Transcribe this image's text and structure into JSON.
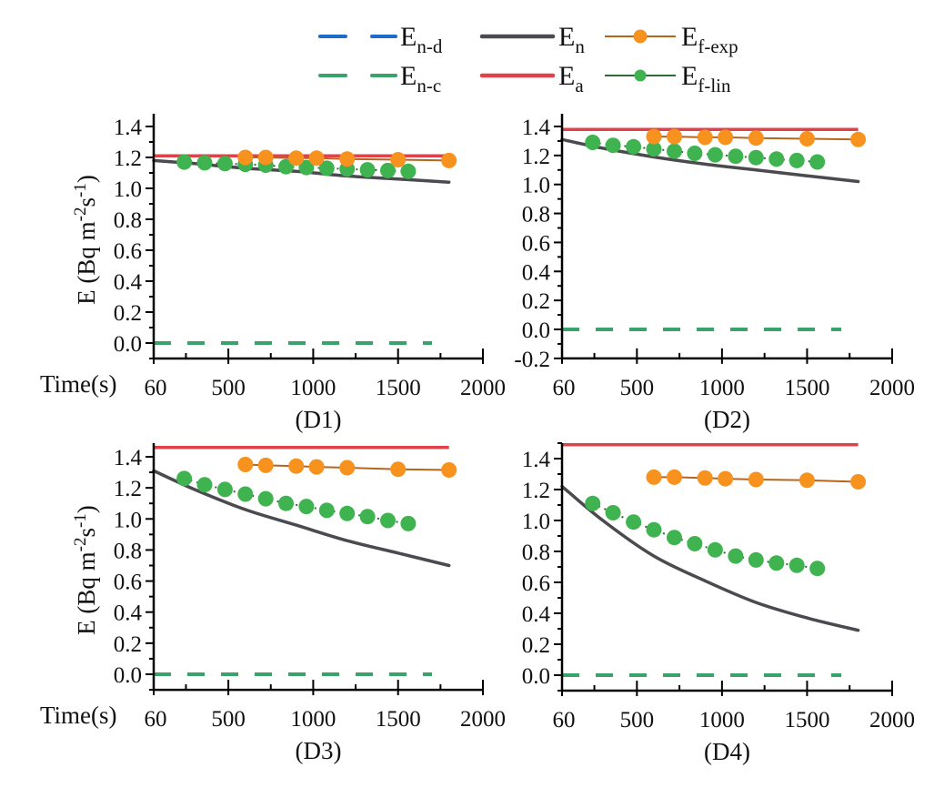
{
  "legend": {
    "items": [
      {
        "key": "En_d",
        "main": "E",
        "sub": "n-d",
        "style": "dashed",
        "color": "#1f6cc8"
      },
      {
        "key": "En",
        "main": "E",
        "sub": "n",
        "style": "solid",
        "color": "#4a4a4f"
      },
      {
        "key": "Ef_exp",
        "main": "E",
        "sub": "f-exp",
        "style": "line-marker",
        "color": "#f7921e",
        "line_color": "#b5651d"
      },
      {
        "key": "En_c",
        "main": "E",
        "sub": "n-c",
        "style": "dashed",
        "color": "#3aa36b"
      },
      {
        "key": "Ea",
        "main": "E",
        "sub": "a",
        "style": "solid",
        "color": "#e0424a"
      },
      {
        "key": "Ef_lin",
        "main": "E",
        "sub": "f-lin",
        "style": "dot-marker",
        "color": "#3fb34f",
        "line_color": "#2e6b37"
      }
    ]
  },
  "labels": {
    "ylabel_main": "E (Bq m",
    "ylabel_sup1": "-2",
    "ylabel_mid": "s",
    "ylabel_sup2": "-1",
    "ylabel_end": ")",
    "xlabel": "Time(s)"
  },
  "chart_data": [
    {
      "type": "line",
      "title": "(D1)",
      "xlabel": "Time(s)",
      "ylabel": "E (Bq m-2s-1)",
      "xlim": [
        60,
        2000
      ],
      "ylim": [
        -0.1,
        1.5
      ],
      "xticks": [
        60,
        500,
        1000,
        1500,
        2000
      ],
      "yticks": [
        0.0,
        0.2,
        0.4,
        0.6,
        0.8,
        1.0,
        1.2,
        1.4
      ],
      "ytick_labels": [
        "0.0",
        "0.2",
        "0.4",
        "0.6",
        "0.8",
        "1.0",
        "1.2",
        "1.4"
      ],
      "series": [
        {
          "name": "En-d",
          "x": [
            60,
            1700
          ],
          "y": [
            0.0,
            0.0
          ]
        },
        {
          "name": "En-c",
          "x": [
            60,
            1700
          ],
          "y": [
            0.0,
            0.0
          ]
        },
        {
          "name": "Ea",
          "x": [
            60,
            1800
          ],
          "y": [
            1.21,
            1.21
          ]
        },
        {
          "name": "En",
          "x": [
            60,
            300,
            600,
            900,
            1200,
            1500,
            1800
          ],
          "y": [
            1.18,
            1.16,
            1.13,
            1.11,
            1.08,
            1.06,
            1.04
          ]
        },
        {
          "name": "Ef-exp",
          "x": [
            600,
            720,
            900,
            1020,
            1200,
            1500,
            1800
          ],
          "y": [
            1.2,
            1.2,
            1.195,
            1.195,
            1.19,
            1.185,
            1.18
          ]
        },
        {
          "name": "Ef-lin",
          "x": [
            240,
            360,
            480,
            600,
            720,
            840,
            960,
            1080,
            1200,
            1320,
            1440,
            1560
          ],
          "y": [
            1.17,
            1.165,
            1.16,
            1.155,
            1.15,
            1.14,
            1.135,
            1.13,
            1.125,
            1.12,
            1.115,
            1.11
          ]
        }
      ]
    },
    {
      "type": "line",
      "title": "(D2)",
      "xlabel": "",
      "ylabel": "",
      "xlim": [
        60,
        2000
      ],
      "ylim": [
        -0.2,
        1.5
      ],
      "xticks": [
        60,
        500,
        1000,
        1500,
        2000
      ],
      "yticks": [
        -0.2,
        0.0,
        0.2,
        0.4,
        0.6,
        0.8,
        1.0,
        1.2,
        1.4
      ],
      "ytick_labels": [
        "-0.2",
        "0.0",
        "0.2",
        "0.4",
        "0.6",
        "0.8",
        "1.0",
        "1.2",
        "1.4"
      ],
      "series": [
        {
          "name": "En-d",
          "x": [
            60,
            1700
          ],
          "y": [
            0.0,
            0.0
          ]
        },
        {
          "name": "En-c",
          "x": [
            60,
            1700
          ],
          "y": [
            0.0,
            0.0
          ]
        },
        {
          "name": "Ea",
          "x": [
            60,
            1800
          ],
          "y": [
            1.38,
            1.38
          ]
        },
        {
          "name": "En",
          "x": [
            60,
            300,
            600,
            900,
            1200,
            1500,
            1800
          ],
          "y": [
            1.31,
            1.25,
            1.19,
            1.14,
            1.1,
            1.06,
            1.02
          ]
        },
        {
          "name": "Ef-exp",
          "x": [
            600,
            720,
            900,
            1020,
            1200,
            1500,
            1800
          ],
          "y": [
            1.33,
            1.33,
            1.325,
            1.325,
            1.32,
            1.315,
            1.31
          ]
        },
        {
          "name": "Ef-lin",
          "x": [
            240,
            360,
            480,
            600,
            720,
            840,
            960,
            1080,
            1200,
            1320,
            1440,
            1560
          ],
          "y": [
            1.29,
            1.27,
            1.26,
            1.245,
            1.23,
            1.215,
            1.205,
            1.195,
            1.185,
            1.175,
            1.165,
            1.155
          ]
        }
      ]
    },
    {
      "type": "line",
      "title": "(D3)",
      "xlabel": "Time(s)",
      "ylabel": "E (Bq m-2s-1)",
      "xlim": [
        60,
        2000
      ],
      "ylim": [
        -0.1,
        1.5
      ],
      "xticks": [
        60,
        500,
        1000,
        1500,
        2000
      ],
      "yticks": [
        0.0,
        0.2,
        0.4,
        0.6,
        0.8,
        1.0,
        1.2,
        1.4
      ],
      "ytick_labels": [
        "0.0",
        "0.2",
        "0.4",
        "0.6",
        "0.8",
        "1.0",
        "1.2",
        "1.4"
      ],
      "series": [
        {
          "name": "En-d",
          "x": [
            60,
            1700
          ],
          "y": [
            0.0,
            0.0
          ]
        },
        {
          "name": "En-c",
          "x": [
            60,
            1700
          ],
          "y": [
            0.0,
            0.0
          ]
        },
        {
          "name": "Ea",
          "x": [
            60,
            1800
          ],
          "y": [
            1.46,
            1.46
          ]
        },
        {
          "name": "En",
          "x": [
            60,
            300,
            600,
            900,
            1200,
            1500,
            1800
          ],
          "y": [
            1.31,
            1.19,
            1.06,
            0.96,
            0.86,
            0.78,
            0.7
          ]
        },
        {
          "name": "Ef-exp",
          "x": [
            600,
            720,
            900,
            1020,
            1200,
            1500,
            1800
          ],
          "y": [
            1.35,
            1.345,
            1.34,
            1.335,
            1.33,
            1.32,
            1.315
          ]
        },
        {
          "name": "Ef-lin",
          "x": [
            240,
            360,
            480,
            600,
            720,
            840,
            960,
            1080,
            1200,
            1320,
            1440,
            1560
          ],
          "y": [
            1.26,
            1.22,
            1.19,
            1.16,
            1.13,
            1.1,
            1.08,
            1.055,
            1.035,
            1.015,
            0.99,
            0.97
          ]
        }
      ]
    },
    {
      "type": "line",
      "title": "(D4)",
      "xlabel": "",
      "ylabel": "",
      "xlim": [
        60,
        2000
      ],
      "ylim": [
        -0.1,
        1.5
      ],
      "xticks": [
        60,
        500,
        1000,
        1500,
        2000
      ],
      "yticks": [
        0.0,
        0.2,
        0.4,
        0.6,
        0.8,
        1.0,
        1.2,
        1.4
      ],
      "ytick_labels": [
        "0.0",
        "0.2",
        "0.4",
        "0.6",
        "0.8",
        "1.0",
        "1.2",
        "1.4"
      ],
      "series": [
        {
          "name": "En-d",
          "x": [
            60,
            1700
          ],
          "y": [
            0.0,
            0.0
          ]
        },
        {
          "name": "En-c",
          "x": [
            60,
            1700
          ],
          "y": [
            0.0,
            0.0
          ]
        },
        {
          "name": "Ea",
          "x": [
            60,
            1800
          ],
          "y": [
            1.49,
            1.49
          ]
        },
        {
          "name": "En",
          "x": [
            60,
            300,
            600,
            900,
            1200,
            1500,
            1800
          ],
          "y": [
            1.22,
            1.0,
            0.77,
            0.61,
            0.47,
            0.37,
            0.29
          ]
        },
        {
          "name": "Ef-exp",
          "x": [
            600,
            720,
            900,
            1020,
            1200,
            1500,
            1800
          ],
          "y": [
            1.28,
            1.28,
            1.275,
            1.27,
            1.265,
            1.26,
            1.25
          ]
        },
        {
          "name": "Ef-lin",
          "x": [
            240,
            360,
            480,
            600,
            720,
            840,
            960,
            1080,
            1200,
            1320,
            1440,
            1560
          ],
          "y": [
            1.11,
            1.05,
            0.99,
            0.94,
            0.89,
            0.85,
            0.81,
            0.77,
            0.745,
            0.725,
            0.71,
            0.69
          ]
        }
      ]
    }
  ]
}
